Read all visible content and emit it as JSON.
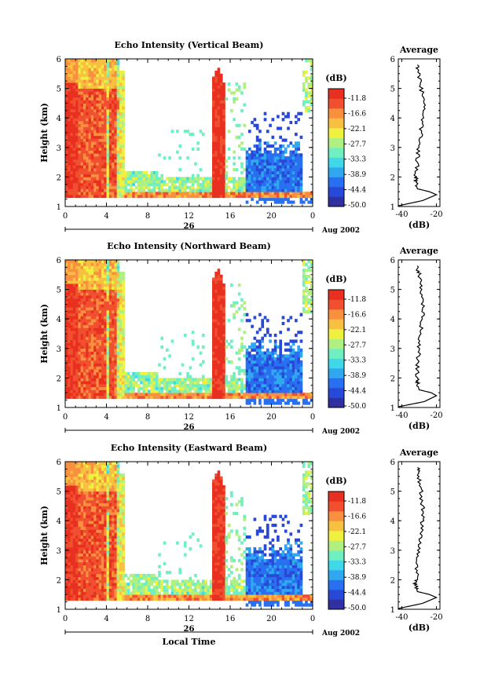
{
  "chart_data": [
    {
      "type": "heatmap",
      "title": "Echo Intensity (Vertical Beam)",
      "ylabel": "Height (km)",
      "ylim": [
        1,
        6
      ],
      "yticks": [
        "1",
        "2",
        "3",
        "4",
        "5",
        "6"
      ],
      "xlim": [
        0,
        24
      ],
      "xticks": [
        "0",
        "4",
        "8",
        "12",
        "16",
        "20",
        "0"
      ],
      "date_day": "26",
      "date_label": "Aug 2002",
      "colorbar": {
        "unit": "(dB)",
        "levels": [
          "-11.8",
          "-16.6",
          "-22.1",
          "-27.7",
          "-33.3",
          "-38.9",
          "-44.4",
          "-50.0"
        ]
      },
      "profile": {
        "title": "Average",
        "xlabel": "(dB)",
        "xticks": [
          "-40",
          "-20"
        ],
        "heights": [
          1.0,
          1.2,
          1.4,
          1.5,
          1.6,
          1.8,
          2.0,
          2.5,
          3.0,
          3.5,
          4.0,
          4.5,
          5.0,
          5.5,
          5.8
        ],
        "values": [
          -44,
          -28,
          -20,
          -24,
          -31,
          -32,
          -32,
          -31,
          -30,
          -29,
          -28,
          -27,
          -29,
          -30,
          -31
        ]
      }
    },
    {
      "type": "heatmap",
      "title": "Echo Intensity (Northward Beam)",
      "ylabel": "Height (km)",
      "ylim": [
        1,
        6
      ],
      "yticks": [
        "1",
        "2",
        "3",
        "4",
        "5",
        "6"
      ],
      "xlim": [
        0,
        24
      ],
      "xticks": [
        "0",
        "4",
        "8",
        "12",
        "16",
        "20",
        "0"
      ],
      "date_day": "26",
      "date_label": "Aug 2002",
      "colorbar": {
        "unit": "(dB)",
        "levels": [
          "-11.8",
          "-16.6",
          "-22.1",
          "-27.7",
          "-33.3",
          "-38.9",
          "-44.4",
          "-50.0"
        ]
      },
      "profile": {
        "title": "Average",
        "xlabel": "(dB)",
        "xticks": [
          "-40",
          "-20"
        ],
        "heights": [
          1.0,
          1.2,
          1.4,
          1.5,
          1.6,
          1.8,
          2.0,
          2.5,
          3.0,
          3.5,
          4.0,
          4.5,
          5.0,
          5.5,
          5.8
        ],
        "values": [
          -44,
          -27,
          -20,
          -23,
          -30,
          -31,
          -31,
          -31,
          -30,
          -29,
          -28,
          -28,
          -29,
          -30,
          -31
        ]
      }
    },
    {
      "type": "heatmap",
      "title": "Echo Intensity (Eastward Beam)",
      "ylabel": "Height (km)",
      "xlabel": "Local Time",
      "ylim": [
        1,
        6
      ],
      "yticks": [
        "1",
        "2",
        "3",
        "4",
        "5",
        "6"
      ],
      "xlim": [
        0,
        24
      ],
      "xticks": [
        "0",
        "4",
        "8",
        "12",
        "16",
        "20",
        "0"
      ],
      "date_day": "26",
      "date_label": "Aug 2002",
      "colorbar": {
        "unit": "(dB)",
        "levels": [
          "-11.8",
          "-16.6",
          "-22.1",
          "-27.7",
          "-33.3",
          "-38.9",
          "-44.4",
          "-50.0"
        ]
      },
      "profile": {
        "title": "Average",
        "xlabel": "(dB)",
        "xticks": [
          "-40",
          "-20"
        ],
        "heights": [
          1.0,
          1.2,
          1.4,
          1.5,
          1.6,
          1.8,
          2.0,
          2.5,
          3.0,
          3.5,
          4.0,
          4.5,
          5.0,
          5.5,
          5.8
        ],
        "values": [
          -44,
          -28,
          -20,
          -24,
          -31,
          -32,
          -32,
          -31,
          -30,
          -29,
          -28,
          -28,
          -29,
          -30,
          -31
        ]
      }
    }
  ],
  "colors": {
    "scale": [
      "#3030a0",
      "#2848d8",
      "#2870f0",
      "#30a8f0",
      "#40d8e8",
      "#70f0c0",
      "#b0f080",
      "#f0f040",
      "#f8c040",
      "#f89040",
      "#f05030",
      "#e83020"
    ]
  }
}
